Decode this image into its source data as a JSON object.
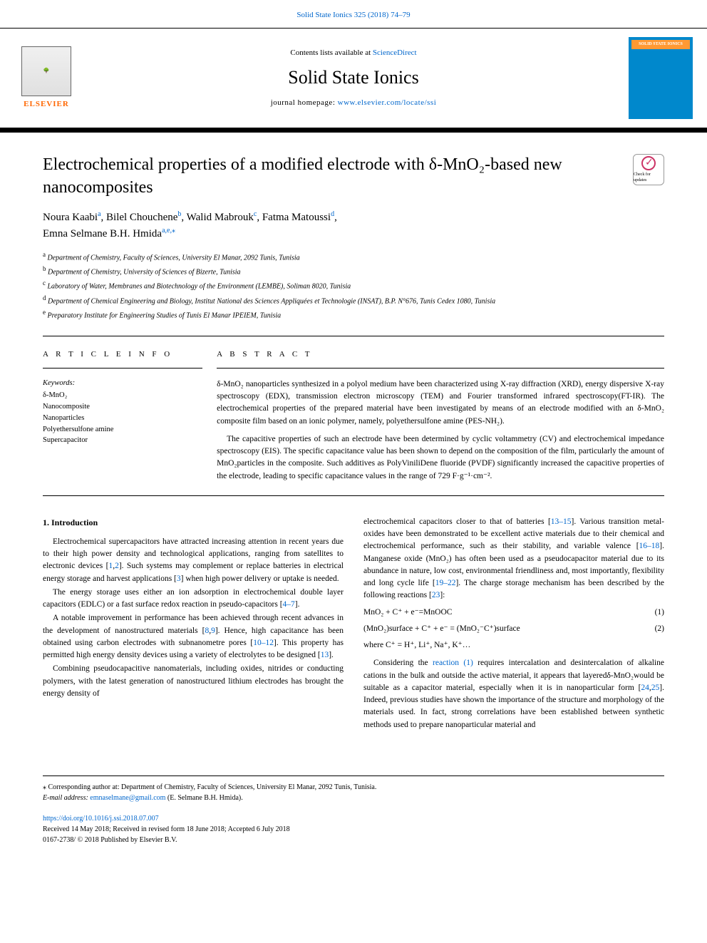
{
  "top_link": {
    "journal_ref": "Solid State Ionics 325 (2018) 74–79"
  },
  "header": {
    "contents_prefix": "Contents lists available at ",
    "contents_link": "ScienceDirect",
    "journal_name": "Solid State Ionics",
    "homepage_prefix": "journal homepage: ",
    "homepage_url": "www.elsevier.com/locate/ssi",
    "elsevier_label": "ELSEVIER",
    "cover_title": "SOLID STATE IONICS"
  },
  "article": {
    "title": "Electrochemical properties of a modified electrode with δ-MnO₂-based new nanocomposites",
    "check_updates": "Check for updates"
  },
  "authors": {
    "a1_name": "Noura Kaabi",
    "a1_sup": "a",
    "a2_name": "Bilel Chouchene",
    "a2_sup": "b",
    "a3_name": "Walid Mabrouk",
    "a3_sup": "c",
    "a4_name": "Fatma Matoussi",
    "a4_sup": "d",
    "a5_name": "Emna Selmane B.H. Hmida",
    "a5_sup": "a,e,",
    "a5_star": "⁎"
  },
  "affiliations": {
    "a": "Department of Chemistry, Faculty of Sciences, University El Manar, 2092 Tunis, Tunisia",
    "b": "Department of Chemistry, University of Sciences of Bizerte, Tunisia",
    "c": "Laboratory of Water, Membranes and Biotechnology of the Environment (LEMBE), Soliman 8020, Tunisia",
    "d": "Department of Chemical Engineering and Biology, Institut National des Sciences Appliquées et Technologie (INSAT), B.P. N°676, Tunis Cedex 1080, Tunisia",
    "e": "Preparatory Institute for Engineering Studies of Tunis El Manar IPEIEM, Tunisia"
  },
  "info": {
    "heading": "A R T I C L E  I N F O",
    "keywords_label": "Keywords:",
    "kw1": "δ-MnO₂",
    "kw2": "Nanocomposite",
    "kw3": "Nanoparticles",
    "kw4": "Polyethersulfone amine",
    "kw5": "Supercapacitor"
  },
  "abstract": {
    "heading": "A B S T R A C T",
    "p1": "δ-MnO₂ nanoparticles synthesized in a polyol medium have been characterized using X-ray diffraction (XRD), energy dispersive X-ray spectroscopy (EDX), transmission electron microscopy (TEM) and Fourier transformed infrared spectroscopy(FT-IR). The electrochemical properties of the prepared material have been investigated by means of an electrode modified with an δ-MnO₂ composite film based on an ionic polymer, namely, polyethersulfone amine (PES-NH₂).",
    "p2": "The capacitive properties of such an electrode have been determined by cyclic voltammetry (CV) and electrochemical impedance spectroscopy (EIS). The specific capacitance value has been shown to depend on the composition of the film, particularly the amount of MnO₂particles in the composite. Such additives as PolyViniliDene fluoride (PVDF) significantly increased the capacitive properties of the electrode, leading to specific capacitance values in the range of 729 F·g⁻¹·cm⁻²."
  },
  "body": {
    "section1_heading": "1. Introduction",
    "col1_p1_a": "Electrochemical supercapacitors have attracted increasing attention in recent years due to their high power density and technological applications, ranging from satellites to electronic devices [",
    "col1_p1_cite1": "1",
    "col1_p1_b": ",",
    "col1_p1_cite2": "2",
    "col1_p1_c": "]. Such systems may complement or replace batteries in electrical energy storage and harvest applications [",
    "col1_p1_cite3": "3",
    "col1_p1_d": "] when high power delivery or uptake is needed.",
    "col1_p2_a": "The energy storage uses either an ion adsorption in electrochemical double layer capacitors (EDLC) or a fast surface redox reaction in pseudo-capacitors [",
    "col1_p2_cite": "4–7",
    "col1_p2_b": "].",
    "col1_p3_a": "A notable improvement in performance has been achieved through recent advances in the development of nanostructured materials [",
    "col1_p3_cite1": "8",
    "col1_p3_b": ",",
    "col1_p3_cite2": "9",
    "col1_p3_c": "]. Hence, high capacitance has been obtained using carbon electrodes with subnanometre pores [",
    "col1_p3_cite3": "10–12",
    "col1_p3_d": "]. This property has permitted high energy density devices using a variety of electrolytes to be designed [",
    "col1_p3_cite4": "13",
    "col1_p3_e": "].",
    "col1_p4": "Combining pseudocapacitive nanomaterials, including oxides, nitrides or conducting polymers, with the latest generation of nanostructured lithium electrodes has brought the energy density of",
    "col2_p1_a": "electrochemical capacitors closer to that of batteries [",
    "col2_p1_cite1": "13–15",
    "col2_p1_b": "]. Various transition metal-oxides have been demonstrated to be excellent active materials due to their chemical and electrochemical performance, such as their stability, and variable valence [",
    "col2_p1_cite2": "16–18",
    "col2_p1_c": "]. Manganese oxide (MnO₂) has often been used as a pseudocapacitor material due to its abundance in nature, low cost, environmental friendliness and, most importantly, flexibility and long cycle life [",
    "col2_p1_cite3": "19–22",
    "col2_p1_d": "]. The charge storage mechanism has been described by the following reactions [",
    "col2_p1_cite4": "23",
    "col2_p1_e": "]:",
    "eq1": "MnO₂ + C⁺ + e⁻=MnOOC",
    "eq1_num": "(1)",
    "eq2": "(MnO₂)surface + C⁺ + e⁻ = (MnO₂⁻C⁺)surface",
    "eq2_num": "(2)",
    "where": "where C⁺ = H⁺, Li⁺, Na⁺, K⁺…",
    "col2_p2_a": "Considering the ",
    "col2_p2_link": "reaction (1)",
    "col2_p2_b": " requires intercalation and desintercalation of alkaline cations in the bulk and outside the active material, it appears that layeredδ-MnO₂would be suitable as a capacitor material, especially when it is in nanoparticular form [",
    "col2_p2_cite1": "24",
    "col2_p2_c": ",",
    "col2_p2_cite2": "25",
    "col2_p2_d": "]. Indeed, previous studies have shown the importance of the structure and morphology of the materials used. In fact, strong correlations have been established between synthetic methods used to prepare nanoparticular material and"
  },
  "footnotes": {
    "star": "⁎",
    "corr_text": " Corresponding author at: Department of Chemistry, Faculty of Sciences, University El Manar, 2092 Tunis, Tunisia.",
    "email_label": "E-mail address: ",
    "email": "emnaselmane@gmail.com",
    "email_suffix": " (E. Selmane B.H. Hmida)."
  },
  "doi": {
    "url": "https://doi.org/10.1016/j.ssi.2018.07.007",
    "received": "Received 14 May 2018; Received in revised form 18 June 2018; Accepted 6 July 2018",
    "issn": "0167-2738/ © 2018 Published by Elsevier B.V."
  },
  "colors": {
    "link": "#0066cc",
    "elsevier_orange": "#ff6600",
    "cover_bg": "#0088cc",
    "cover_title_bg": "#ff9933",
    "check_pink": "#cc3366"
  }
}
